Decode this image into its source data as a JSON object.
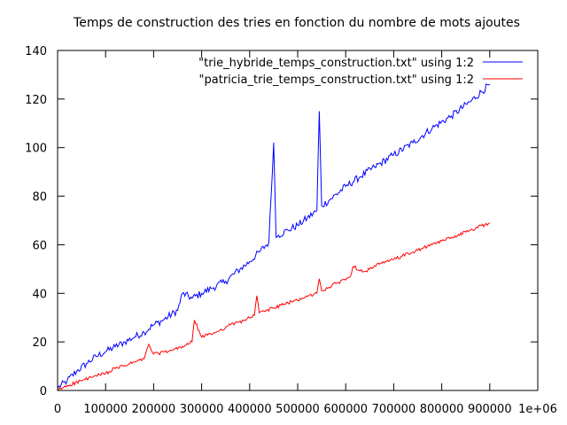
{
  "chart_data": {
    "type": "line",
    "title": "Temps de construction des tries en fonction du nombre de mots ajoutes",
    "xlabel": "",
    "ylabel": "",
    "xlim": [
      0,
      1000000
    ],
    "ylim": [
      0,
      140
    ],
    "x_ticks": [
      "0",
      "100000",
      "200000",
      "300000",
      "400000",
      "500000",
      "600000",
      "700000",
      "800000",
      "900000",
      "1e+06"
    ],
    "y_ticks": [
      "0",
      "20",
      "40",
      "60",
      "80",
      "100",
      "120",
      "140"
    ],
    "grid": false,
    "legend_placement": "top-right",
    "series": [
      {
        "name": "\"trie_hybride_temps_construction.txt\" using 1:2",
        "color": "#0000ff",
        "x": [
          0,
          20000,
          40000,
          60000,
          80000,
          100000,
          120000,
          140000,
          160000,
          180000,
          200000,
          220000,
          250000,
          260000,
          280000,
          300000,
          320000,
          350000,
          380000,
          400000,
          420000,
          440000,
          450000,
          455000,
          460000,
          480000,
          500000,
          520000,
          540000,
          545000,
          550000,
          570000,
          600000,
          630000,
          660000,
          700000,
          740000,
          780000,
          820000,
          860000,
          900000
        ],
        "y": [
          1,
          4,
          8,
          11,
          14,
          16,
          18,
          20,
          22,
          24,
          27,
          29,
          33,
          40,
          38,
          40,
          42,
          45,
          50,
          53,
          57,
          61,
          102,
          63,
          64,
          66,
          68,
          71,
          74,
          115,
          76,
          79,
          84,
          88,
          92,
          97,
          102,
          108,
          113,
          119,
          126
        ]
      },
      {
        "name": "\"patricia_trie_temps_construction.txt\" using 1:2",
        "color": "#ff0000",
        "x": [
          0,
          20000,
          50000,
          80000,
          100000,
          120000,
          150000,
          180000,
          190000,
          200000,
          230000,
          260000,
          280000,
          285000,
          300000,
          330000,
          360000,
          390000,
          410000,
          415000,
          420000,
          450000,
          480000,
          510000,
          540000,
          545000,
          550000,
          580000,
          610000,
          615000,
          640000,
          670000,
          700000,
          740000,
          780000,
          820000,
          860000,
          900000
        ],
        "y": [
          0,
          2,
          4,
          6,
          7,
          9,
          11,
          13,
          19,
          15,
          16,
          18,
          20,
          29,
          22,
          24,
          27,
          29,
          31,
          39,
          32,
          34,
          36,
          38,
          40,
          46,
          41,
          44,
          47,
          51,
          49,
          52,
          54,
          57,
          60,
          63,
          66,
          69
        ]
      }
    ]
  }
}
